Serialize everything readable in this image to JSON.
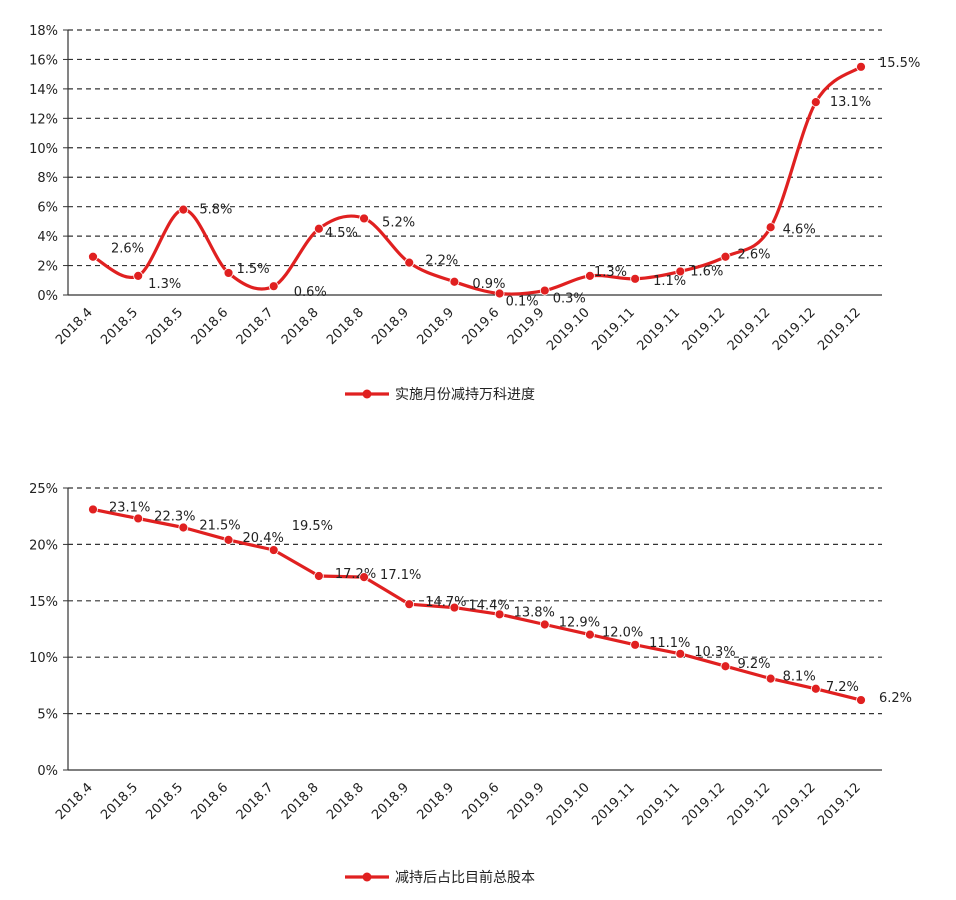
{
  "chart_data": [
    {
      "type": "line",
      "title": "",
      "xlabel": "",
      "ylabel": "",
      "ylim": [
        0,
        18
      ],
      "y_tick_labels": [
        "0%",
        "2%",
        "4%",
        "6%",
        "8%",
        "10%",
        "12%",
        "14%",
        "16%",
        "18%"
      ],
      "categories": [
        "2018.4",
        "2018.5",
        "2018.5",
        "2018.6",
        "2018.7",
        "2018.8",
        "2018.8",
        "2018.9",
        "2018.9",
        "2019.6",
        "2019.9",
        "2019.10",
        "2019.11",
        "2019.11",
        "2019.12",
        "2019.12",
        "2019.12",
        "2019.12"
      ],
      "grid": "horizontal-dashed",
      "legend_position": "bottom",
      "line_color": "#e02020",
      "series": [
        {
          "name": "实施月份减持万科进度",
          "values": [
            2.6,
            1.3,
            5.8,
            1.5,
            0.6,
            4.5,
            5.2,
            2.2,
            0.9,
            0.1,
            0.3,
            1.3,
            1.1,
            1.6,
            2.6,
            4.6,
            13.1,
            15.5
          ],
          "labels": [
            "2.6%",
            "1.3%",
            "5.8%",
            "1.5%",
            "0.6%",
            "4.5%",
            "5.2%",
            "2.2%",
            "0.9%",
            "0.1%",
            "0.3%",
            "1.3%",
            "1.1%",
            "1.6%",
            "2.6%",
            "4.6%",
            "13.1%",
            "15.5%"
          ]
        }
      ]
    },
    {
      "type": "line",
      "title": "",
      "xlabel": "",
      "ylabel": "",
      "ylim": [
        0,
        25
      ],
      "y_tick_labels": [
        "0%",
        "5%",
        "10%",
        "15%",
        "20%",
        "25%"
      ],
      "categories": [
        "2018.4",
        "2018.5",
        "2018.5",
        "2018.6",
        "2018.7",
        "2018.8",
        "2018.8",
        "2018.9",
        "2018.9",
        "2019.6",
        "2019.9",
        "2019.10",
        "2019.11",
        "2019.11",
        "2019.12",
        "2019.12",
        "2019.12",
        "2019.12"
      ],
      "grid": "horizontal-dashed",
      "legend_position": "bottom",
      "line_color": "#e02020",
      "series": [
        {
          "name": "减持后占比目前总股本",
          "values": [
            23.1,
            22.3,
            21.5,
            20.4,
            19.5,
            17.2,
            17.1,
            14.7,
            14.4,
            13.8,
            12.9,
            12.0,
            11.1,
            10.3,
            9.2,
            8.1,
            7.2,
            6.2
          ],
          "labels": [
            "23.1%",
            "22.3%",
            "21.5%",
            "20.4%",
            "19.5%",
            "17.2%",
            "17.1%",
            "14.7%",
            "14.4%",
            "13.8%",
            "12.9%",
            "12.0%",
            "11.1%",
            "10.3%",
            "9.2%",
            "8.1%",
            "7.2%",
            "6.2%"
          ]
        }
      ]
    }
  ]
}
